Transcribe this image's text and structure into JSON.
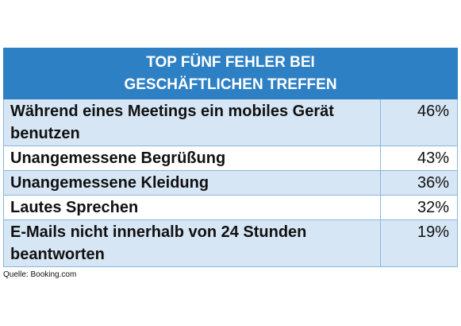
{
  "chart_data": {
    "type": "table",
    "title": "TOP FÜNF FEHLER BEI GESCHÄFTLICHEN TREFFEN",
    "title_lines": [
      "TOP FÜNF FEHLER BEI",
      "GESCHÄFTLICHEN TREFFEN"
    ],
    "rows": [
      {
        "label": "Während eines Meetings ein mobiles Gerät benutzen",
        "value": 46,
        "display": "46%"
      },
      {
        "label": "Unangemessene Begrüßung",
        "value": 43,
        "display": "43%"
      },
      {
        "label": "Unangemessene Kleidung",
        "value": 36,
        "display": "36%"
      },
      {
        "label": "Lautes Sprechen",
        "value": 32,
        "display": "32%"
      },
      {
        "label": "E-Mails nicht innerhalb von 24 Stunden beantworten",
        "value": 19,
        "display": "19%"
      }
    ],
    "unit": "%",
    "source": "Quelle: Booking.com"
  },
  "colors": {
    "header_bg": "#2e80c4",
    "header_text": "#ffffff",
    "row_odd_bg": "#d6e6f4",
    "row_even_bg": "#ffffff",
    "border": "#88b6dd"
  }
}
